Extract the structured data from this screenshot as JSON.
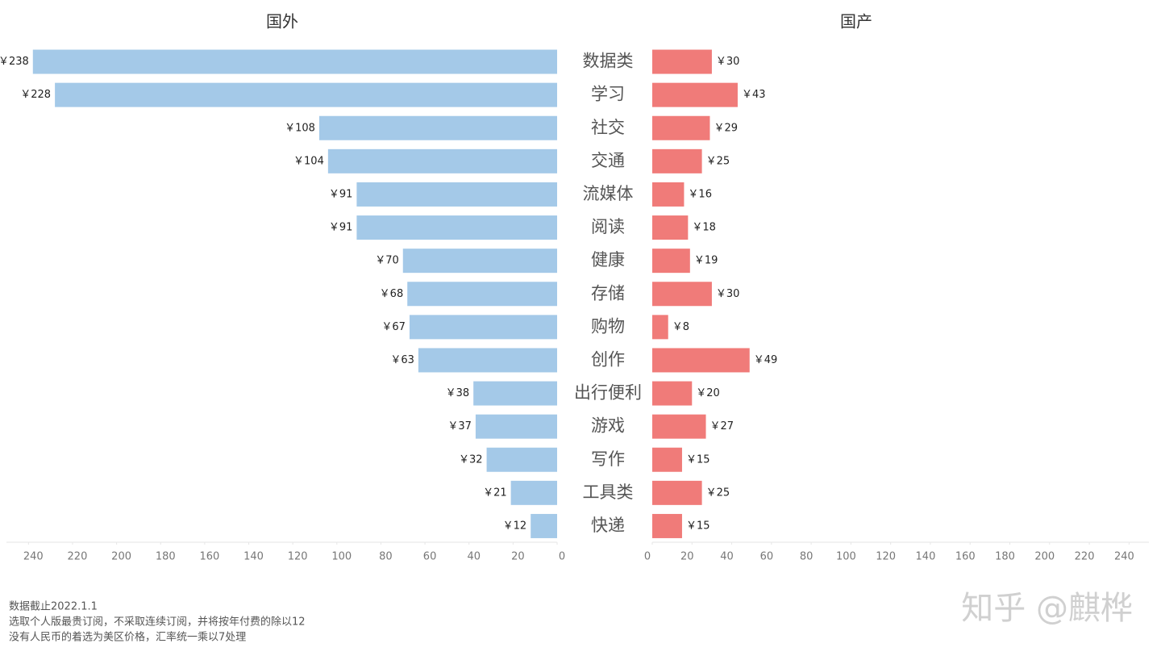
{
  "chart_data": {
    "type": "bar",
    "orientation": "horizontal",
    "categories": [
      "数据类",
      "学习",
      "社交",
      "交通",
      "流媒体",
      "阅读",
      "健康",
      "存储",
      "购物",
      "创作",
      "出行便利",
      "游戏",
      "写作",
      "工具类",
      "快递"
    ],
    "series": [
      {
        "name": "国外",
        "color": "#a4c9e8",
        "values": [
          238,
          228,
          108,
          104,
          91,
          91,
          70,
          68,
          67,
          63,
          38,
          37,
          32,
          21,
          12
        ],
        "value_labels": [
          "￥238",
          "￥228",
          "￥108",
          "￥104",
          "￥91",
          "￥91",
          "￥70",
          "￥68",
          "￥67",
          "￥63",
          "￥38",
          "￥37",
          "￥32",
          "￥21",
          "￥12"
        ]
      },
      {
        "name": "国产",
        "color": "#f07b79",
        "values": [
          30,
          43,
          29,
          25,
          16,
          18,
          19,
          30,
          8,
          49,
          20,
          27,
          15,
          25,
          15
        ],
        "value_labels": [
          "￥30",
          "￥43",
          "￥29",
          "￥25",
          "￥16",
          "￥18",
          "￥19",
          "￥30",
          "￥8",
          "￥49",
          "￥20",
          "￥27",
          "￥15",
          "￥25",
          "￥15"
        ]
      }
    ],
    "xlim": [
      0,
      250
    ],
    "xticks": [
      0,
      20,
      40,
      60,
      80,
      100,
      120,
      140,
      160,
      180,
      200,
      220,
      240
    ],
    "notes": [
      "数据截止2022.1.1",
      "选取个人版最贵订阅，不采取连续订阅，并将按年付费的除以12",
      "没有人民币的着选为美区价格，汇率统一乘以7处理"
    ],
    "watermark": "知乎 @麒桦"
  }
}
